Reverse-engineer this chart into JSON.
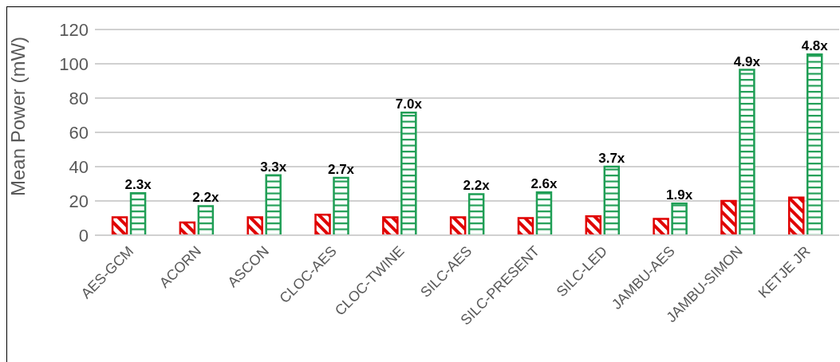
{
  "chart_data": {
    "type": "bar",
    "ylabel": "Mean Power (mW)",
    "categories": [
      "AES-GCM",
      "ACORN",
      "ASCON",
      "CLOC-AES",
      "CLOC-TWINE",
      "SILC-AES",
      "SILC-PRESENT",
      "SILC-LED",
      "JAMBU-AES",
      "JAMBU-SIMON",
      "KETJE JR"
    ],
    "series": [
      {
        "color": "#e00000",
        "values": [
          10.5,
          7.5,
          10.5,
          12,
          10.5,
          10.5,
          10,
          11,
          9.5,
          20,
          22
        ]
      },
      {
        "color": "#1f9e55",
        "values": [
          24.5,
          17,
          35,
          33.5,
          71.5,
          24,
          25,
          40,
          18.5,
          96.5,
          105.5
        ]
      }
    ],
    "annotations": [
      {
        "text": "2.3x",
        "x": "AES-GCM",
        "y": 24.5
      },
      {
        "text": "2.2x",
        "x": "ACORN",
        "y": 17
      },
      {
        "text": "3.3x",
        "x": "ASCON",
        "y": 35
      },
      {
        "text": "2.7x",
        "x": "CLOC-AES",
        "y": 33.5
      },
      {
        "text": "7.0x",
        "x": "CLOC-TWINE",
        "y": 71.5
      },
      {
        "text": "2.2x",
        "x": "SILC-AES",
        "y": 24
      },
      {
        "text": "2.6x",
        "x": "SILC-PRESENT",
        "y": 25
      },
      {
        "text": "3.7x",
        "x": "SILC-LED",
        "y": 40
      },
      {
        "text": "1.9x",
        "x": "JAMBU-AES",
        "y": 18.5
      },
      {
        "text": "4.9x",
        "x": "JAMBU-SIMON",
        "y": 96.5
      },
      {
        "text": "4.8x",
        "x": "KETJE JR",
        "y": 105.5
      }
    ],
    "ylim": [
      0,
      120
    ],
    "yticks": [
      0,
      20,
      40,
      60,
      80,
      100,
      120
    ],
    "grid": "y"
  }
}
